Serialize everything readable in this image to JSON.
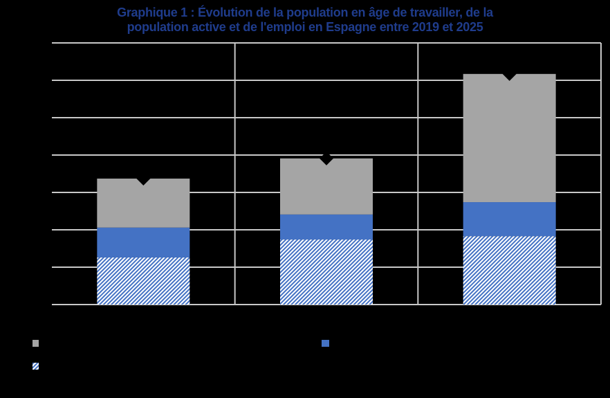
{
  "title": {
    "line1": "Graphique 1 : Évolution de la population en âge de travailler, de la",
    "line2": "population active et de l'emploi en Espagne entre 2019 et 2025"
  },
  "colors": {
    "background": "#000000",
    "title": "#1f3c8c",
    "gridline": "#c8c8c8",
    "grey_series": "#a5a5a5",
    "blue_series": "#4472c4",
    "hatch_series": "#4472c4",
    "marker": "#000000"
  },
  "legend": {
    "items": [
      {
        "swatch": "grey",
        "label": ""
      },
      {
        "swatch": "blue",
        "label": ""
      },
      {
        "swatch": "hatch",
        "label": ""
      }
    ]
  },
  "chart_data": {
    "type": "bar",
    "stacked": true,
    "title": "Graphique 1 : Évolution de la population en âge de travailler, de la population active et de l'emploi en Espagne entre 2019 et 2025",
    "categories": [
      "",
      "",
      ""
    ],
    "series": [
      {
        "name": "",
        "style": "hatched blue",
        "values": [
          1.26,
          1.74,
          1.83
        ]
      },
      {
        "name": "",
        "style": "solid blue",
        "values": [
          0.8,
          0.67,
          0.91
        ]
      },
      {
        "name": "",
        "style": "solid grey",
        "values": [
          1.31,
          1.5,
          3.43
        ]
      },
      {
        "name": "",
        "style": "black diamond marker (total)",
        "values": [
          3.37,
          3.91,
          6.17
        ]
      }
    ],
    "xlabel": "",
    "ylabel": "",
    "ylim": [
      0,
      7
    ],
    "yticks": [
      0,
      1,
      2,
      3,
      4,
      5,
      6,
      7
    ],
    "ytick_labels_visible": false,
    "grid": true,
    "legend_position": "bottom",
    "note": "Axis and legend text rendered in black on black background; values expressed in gridline units."
  }
}
